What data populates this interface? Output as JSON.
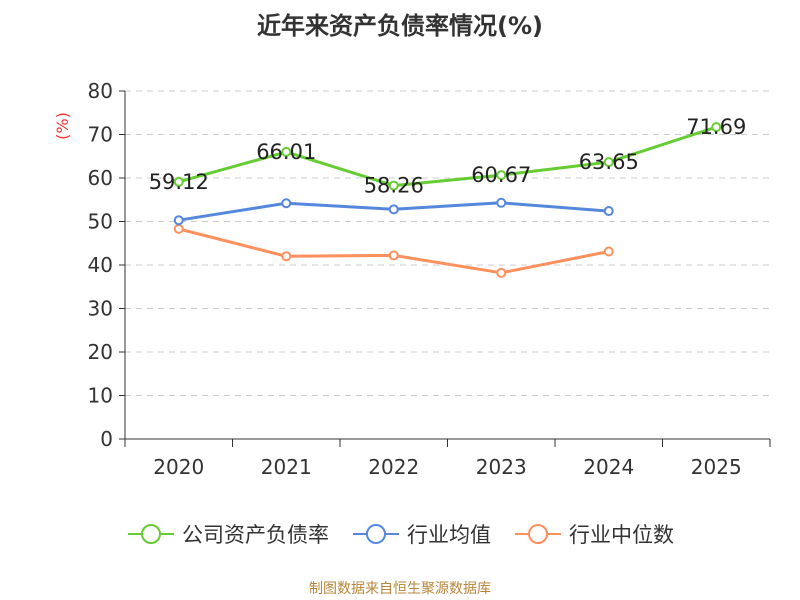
{
  "title": "近年来资产负债率情况(%)",
  "footer": "制图数据来自恒生聚源数据库",
  "colors": {
    "company": "#66cc33",
    "industry_avg": "#5588dd",
    "industry_median": "#ff8f5c",
    "unit_label": "#ee3333",
    "footer": "#b8863b"
  },
  "chart_data": {
    "type": "line",
    "title": "近年来资产负债率情况(%)",
    "y_unit_label": "(%)",
    "categories": [
      "2020",
      "2021",
      "2022",
      "2023",
      "2024",
      "2025"
    ],
    "y_ticks": [
      "0",
      "10",
      "20",
      "30",
      "40",
      "50",
      "60",
      "70",
      "80"
    ],
    "ylim": [
      0,
      80
    ],
    "grid": true,
    "legend_position": "bottom",
    "series": [
      {
        "name": "公司资产负债率",
        "values": [
          59.12,
          66.01,
          58.26,
          60.67,
          63.65,
          71.69
        ],
        "labels": [
          "59.12",
          "66.01",
          "58.26",
          "60.67",
          "63.65",
          "71.69"
        ]
      },
      {
        "name": "行业均值",
        "values": [
          50.3,
          54.2,
          52.8,
          54.3,
          52.4,
          null
        ]
      },
      {
        "name": "行业中位数",
        "values": [
          48.3,
          42.0,
          42.2,
          38.2,
          43.1,
          null
        ]
      }
    ]
  }
}
